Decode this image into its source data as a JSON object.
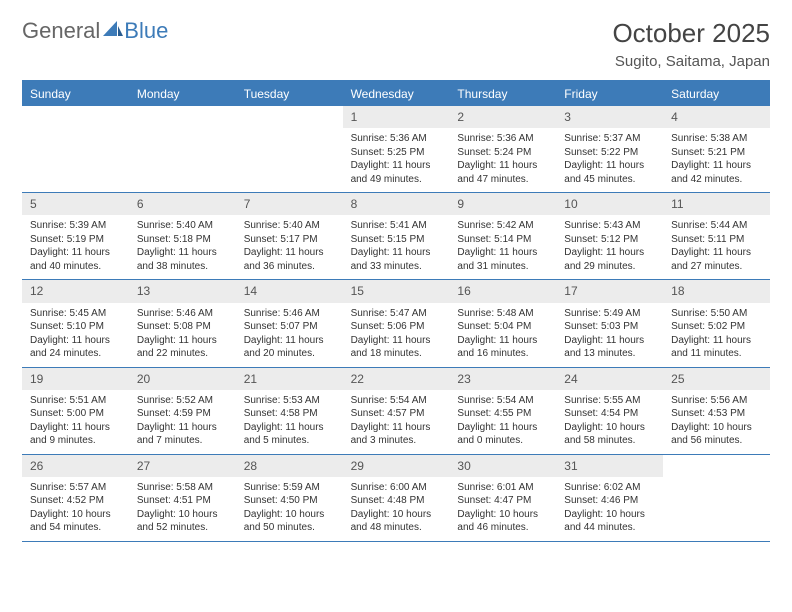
{
  "logo": {
    "text1": "General",
    "text2": "Blue"
  },
  "title": "October 2025",
  "location": "Sugito, Saitama, Japan",
  "dayNames": [
    "Sunday",
    "Monday",
    "Tuesday",
    "Wednesday",
    "Thursday",
    "Friday",
    "Saturday"
  ],
  "colors": {
    "accent": "#3d7bb8",
    "daynum_bg": "#ececec",
    "text": "#333333"
  },
  "startOffset": 3,
  "days": [
    {
      "n": 1,
      "sr": "5:36 AM",
      "ss": "5:25 PM",
      "dl": "11 hours and 49 minutes."
    },
    {
      "n": 2,
      "sr": "5:36 AM",
      "ss": "5:24 PM",
      "dl": "11 hours and 47 minutes."
    },
    {
      "n": 3,
      "sr": "5:37 AM",
      "ss": "5:22 PM",
      "dl": "11 hours and 45 minutes."
    },
    {
      "n": 4,
      "sr": "5:38 AM",
      "ss": "5:21 PM",
      "dl": "11 hours and 42 minutes."
    },
    {
      "n": 5,
      "sr": "5:39 AM",
      "ss": "5:19 PM",
      "dl": "11 hours and 40 minutes."
    },
    {
      "n": 6,
      "sr": "5:40 AM",
      "ss": "5:18 PM",
      "dl": "11 hours and 38 minutes."
    },
    {
      "n": 7,
      "sr": "5:40 AM",
      "ss": "5:17 PM",
      "dl": "11 hours and 36 minutes."
    },
    {
      "n": 8,
      "sr": "5:41 AM",
      "ss": "5:15 PM",
      "dl": "11 hours and 33 minutes."
    },
    {
      "n": 9,
      "sr": "5:42 AM",
      "ss": "5:14 PM",
      "dl": "11 hours and 31 minutes."
    },
    {
      "n": 10,
      "sr": "5:43 AM",
      "ss": "5:12 PM",
      "dl": "11 hours and 29 minutes."
    },
    {
      "n": 11,
      "sr": "5:44 AM",
      "ss": "5:11 PM",
      "dl": "11 hours and 27 minutes."
    },
    {
      "n": 12,
      "sr": "5:45 AM",
      "ss": "5:10 PM",
      "dl": "11 hours and 24 minutes."
    },
    {
      "n": 13,
      "sr": "5:46 AM",
      "ss": "5:08 PM",
      "dl": "11 hours and 22 minutes."
    },
    {
      "n": 14,
      "sr": "5:46 AM",
      "ss": "5:07 PM",
      "dl": "11 hours and 20 minutes."
    },
    {
      "n": 15,
      "sr": "5:47 AM",
      "ss": "5:06 PM",
      "dl": "11 hours and 18 minutes."
    },
    {
      "n": 16,
      "sr": "5:48 AM",
      "ss": "5:04 PM",
      "dl": "11 hours and 16 minutes."
    },
    {
      "n": 17,
      "sr": "5:49 AM",
      "ss": "5:03 PM",
      "dl": "11 hours and 13 minutes."
    },
    {
      "n": 18,
      "sr": "5:50 AM",
      "ss": "5:02 PM",
      "dl": "11 hours and 11 minutes."
    },
    {
      "n": 19,
      "sr": "5:51 AM",
      "ss": "5:00 PM",
      "dl": "11 hours and 9 minutes."
    },
    {
      "n": 20,
      "sr": "5:52 AM",
      "ss": "4:59 PM",
      "dl": "11 hours and 7 minutes."
    },
    {
      "n": 21,
      "sr": "5:53 AM",
      "ss": "4:58 PM",
      "dl": "11 hours and 5 minutes."
    },
    {
      "n": 22,
      "sr": "5:54 AM",
      "ss": "4:57 PM",
      "dl": "11 hours and 3 minutes."
    },
    {
      "n": 23,
      "sr": "5:54 AM",
      "ss": "4:55 PM",
      "dl": "11 hours and 0 minutes."
    },
    {
      "n": 24,
      "sr": "5:55 AM",
      "ss": "4:54 PM",
      "dl": "10 hours and 58 minutes."
    },
    {
      "n": 25,
      "sr": "5:56 AM",
      "ss": "4:53 PM",
      "dl": "10 hours and 56 minutes."
    },
    {
      "n": 26,
      "sr": "5:57 AM",
      "ss": "4:52 PM",
      "dl": "10 hours and 54 minutes."
    },
    {
      "n": 27,
      "sr": "5:58 AM",
      "ss": "4:51 PM",
      "dl": "10 hours and 52 minutes."
    },
    {
      "n": 28,
      "sr": "5:59 AM",
      "ss": "4:50 PM",
      "dl": "10 hours and 50 minutes."
    },
    {
      "n": 29,
      "sr": "6:00 AM",
      "ss": "4:48 PM",
      "dl": "10 hours and 48 minutes."
    },
    {
      "n": 30,
      "sr": "6:01 AM",
      "ss": "4:47 PM",
      "dl": "10 hours and 46 minutes."
    },
    {
      "n": 31,
      "sr": "6:02 AM",
      "ss": "4:46 PM",
      "dl": "10 hours and 44 minutes."
    }
  ],
  "labels": {
    "sunrise": "Sunrise:",
    "sunset": "Sunset:",
    "daylight": "Daylight:"
  }
}
